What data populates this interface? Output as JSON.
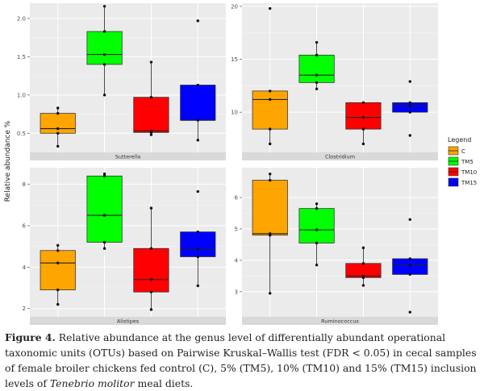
{
  "chart_data": {
    "type": "boxplot",
    "ylabel": "Relative abundance %",
    "legend": {
      "title": "Legend",
      "position": "right",
      "entries": [
        {
          "label": "C",
          "color": "#FFA500"
        },
        {
          "label": "TM5",
          "color": "#00FF00"
        },
        {
          "label": "TM10",
          "color": "#FF0000"
        },
        {
          "label": "TM15",
          "color": "#0000FF"
        }
      ]
    },
    "panels": [
      {
        "strip": "Sutterella",
        "ylim": [
          0.25,
          2.2
        ],
        "yticks": [
          0.5,
          1.0,
          1.5,
          2.0
        ],
        "ytick_labels": [
          "0.5",
          "1.0",
          "1.5",
          "2.0"
        ],
        "boxes": [
          {
            "group": "C",
            "min": 0.33,
            "q1": 0.5,
            "median": 0.56,
            "q3": 0.76,
            "max": 0.83,
            "points": [
              0.33,
              0.5,
              0.56,
              0.76,
              0.83
            ]
          },
          {
            "group": "TM5",
            "min": 1.0,
            "q1": 1.4,
            "median": 1.53,
            "q3": 1.83,
            "max": 2.16,
            "points": [
              1.0,
              1.4,
              1.53,
              1.83,
              2.16
            ]
          },
          {
            "group": "TM10",
            "min": 0.48,
            "q1": 0.51,
            "median": 0.53,
            "q3": 0.97,
            "max": 1.43,
            "points": [
              0.48,
              0.51,
              0.53,
              0.97,
              1.43
            ]
          },
          {
            "group": "TM15",
            "min": 0.41,
            "q1": 0.67,
            "median": 0.67,
            "q3": 1.13,
            "max": 1.13,
            "points": [
              0.41,
              0.67,
              1.13,
              1.97
            ]
          }
        ]
      },
      {
        "strip": "Clostridium",
        "ylim": [
          6.2,
          20.3
        ],
        "yticks": [
          10,
          15,
          20
        ],
        "ytick_labels": [
          "10",
          "15",
          "20"
        ],
        "boxes": [
          {
            "group": "C",
            "min": 7.0,
            "q1": 8.4,
            "median": 11.2,
            "q3": 12.0,
            "max": 12.0,
            "points": [
              7.0,
              8.4,
              11.2,
              12.0,
              19.8
            ]
          },
          {
            "group": "TM5",
            "min": 12.2,
            "q1": 12.8,
            "median": 13.5,
            "q3": 15.4,
            "max": 16.6,
            "points": [
              12.2,
              12.8,
              13.5,
              15.4,
              16.6
            ]
          },
          {
            "group": "TM10",
            "min": 7.0,
            "q1": 8.4,
            "median": 9.5,
            "q3": 10.9,
            "max": 10.9,
            "points": [
              7.0,
              8.4,
              9.5,
              10.9
            ]
          },
          {
            "group": "TM15",
            "min": 10.0,
            "q1": 10.0,
            "median": 10.6,
            "q3": 10.9,
            "max": 10.9,
            "points": [
              7.8,
              10.0,
              10.6,
              10.9,
              12.9
            ]
          }
        ]
      },
      {
        "strip": "Alistipes",
        "ylim": [
          1.6,
          8.8
        ],
        "yticks": [
          2,
          4,
          6,
          8
        ],
        "ytick_labels": [
          "2",
          "4",
          "6",
          "8"
        ],
        "boxes": [
          {
            "group": "C",
            "min": 2.2,
            "q1": 2.9,
            "median": 4.2,
            "q3": 4.8,
            "max": 5.05,
            "points": [
              2.2,
              2.9,
              4.2,
              4.8,
              5.05
            ]
          },
          {
            "group": "TM5",
            "min": 4.9,
            "q1": 5.2,
            "median": 6.5,
            "q3": 8.4,
            "max": 8.5,
            "points": [
              4.9,
              5.2,
              6.5,
              8.4,
              8.5
            ]
          },
          {
            "group": "TM10",
            "min": 1.95,
            "q1": 2.8,
            "median": 3.4,
            "q3": 4.9,
            "max": 6.85,
            "points": [
              1.95,
              2.8,
              3.4,
              4.9,
              6.85
            ]
          },
          {
            "group": "TM15",
            "min": 3.1,
            "q1": 4.5,
            "median": 4.85,
            "q3": 5.7,
            "max": 5.7,
            "points": [
              3.1,
              4.5,
              4.85,
              5.7,
              7.65
            ]
          }
        ]
      },
      {
        "strip": "Ruminococcus",
        "ylim": [
          2.2,
          6.95
        ],
        "yticks": [
          3,
          4,
          5,
          6
        ],
        "ytick_labels": [
          "3",
          "4",
          "5",
          "6"
        ],
        "boxes": [
          {
            "group": "C",
            "min": 2.95,
            "q1": 4.8,
            "median": 4.85,
            "q3": 6.55,
            "max": 6.75,
            "points": [
              2.95,
              4.8,
              4.85,
              6.55,
              6.75
            ]
          },
          {
            "group": "TM5",
            "min": 3.85,
            "q1": 4.55,
            "median": 4.97,
            "q3": 5.65,
            "max": 5.8,
            "points": [
              3.85,
              4.55,
              4.97,
              5.65,
              5.8
            ]
          },
          {
            "group": "TM10",
            "min": 3.2,
            "q1": 3.45,
            "median": 3.5,
            "q3": 3.9,
            "max": 4.4,
            "points": [
              3.2,
              3.45,
              3.5,
              3.9,
              4.4
            ]
          },
          {
            "group": "TM15",
            "min": 3.55,
            "q1": 3.55,
            "median": 3.85,
            "q3": 4.05,
            "max": 4.05,
            "points": [
              2.35,
              3.55,
              3.85,
              4.05,
              5.3
            ]
          }
        ]
      }
    ]
  },
  "caption": {
    "label": "Figure 4.",
    "text_1": " Relative abundance at the genus level of differentially abundant operational taxonomic units (OTUs) based on Pairwise Kruskal–Wallis test (FDR < 0.05) in cecal samples of female broiler chickens fed control (C), 5% (TM5), 10% (TM10) and 15% (TM15) inclusion levels of ",
    "species": "Tenebrio molitor",
    "text_2": " meal diets."
  }
}
